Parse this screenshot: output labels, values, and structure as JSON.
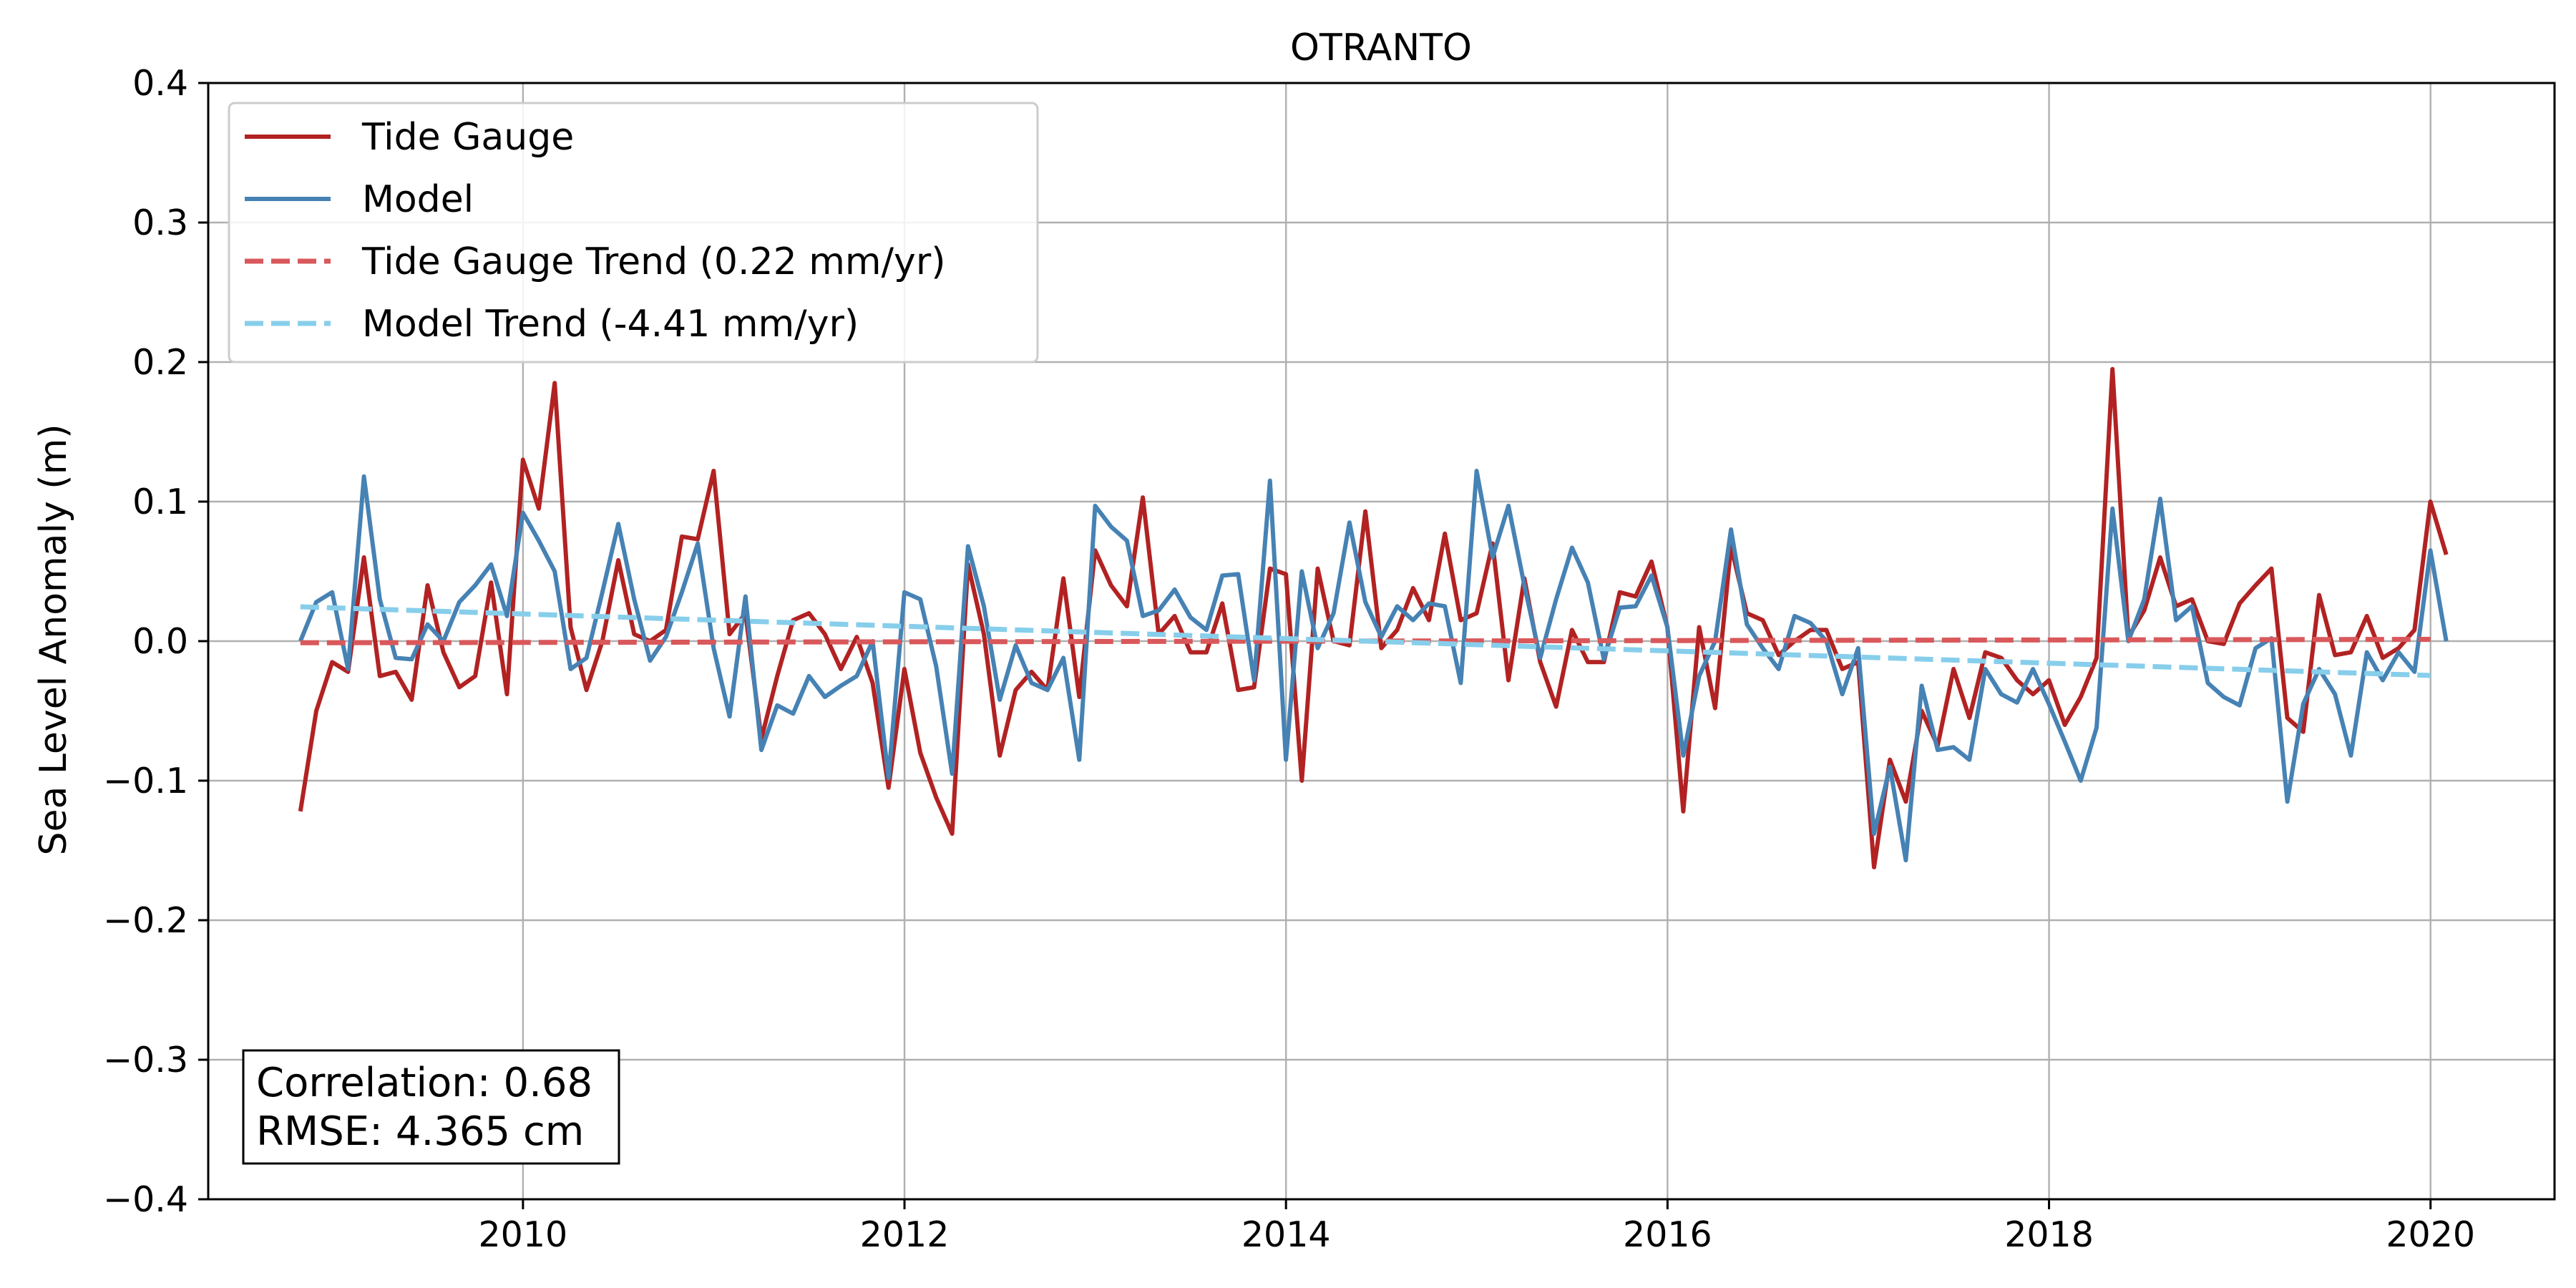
{
  "chart_data": {
    "type": "line",
    "title": "OTRANTO",
    "xlabel": "",
    "ylabel": "Sea Level Anomaly (m)",
    "xlim": [
      2008.35,
      2020.65
    ],
    "ylim": [
      -0.4,
      0.4
    ],
    "grid": true,
    "legend_position": "top-left",
    "x_ticks": [
      2010,
      2012,
      2014,
      2016,
      2018,
      2020
    ],
    "x_tick_labels": [
      "2010",
      "2012",
      "2014",
      "2016",
      "2018",
      "2020"
    ],
    "y_ticks": [
      -0.4,
      -0.3,
      -0.2,
      -0.1,
      0.0,
      0.1,
      0.2,
      0.3,
      0.4
    ],
    "y_tick_labels": [
      "−0.4",
      "−0.3",
      "−0.2",
      "−0.1",
      "0.0",
      "0.1",
      "0.2",
      "0.3",
      "0.4"
    ],
    "x_start": 2008.833,
    "x_step": 0.08333,
    "series": [
      {
        "name": "Tide Gauge",
        "color": "#b22222",
        "style": "solid",
        "values": [
          -0.122,
          -0.05,
          -0.015,
          -0.022,
          0.06,
          -0.025,
          -0.022,
          -0.042,
          0.04,
          -0.008,
          -0.033,
          -0.025,
          0.042,
          -0.038,
          0.13,
          0.095,
          0.185,
          0.01,
          -0.035,
          0.0,
          0.058,
          0.005,
          0.0,
          0.008,
          0.075,
          0.073,
          0.122,
          0.005,
          0.02,
          -0.07,
          -0.025,
          0.015,
          0.02,
          0.005,
          -0.02,
          0.003,
          -0.03,
          -0.105,
          -0.02,
          -0.08,
          -0.112,
          -0.138,
          0.055,
          0.005,
          -0.082,
          -0.035,
          -0.022,
          -0.035,
          0.045,
          -0.04,
          0.065,
          0.04,
          0.025,
          0.103,
          0.005,
          0.018,
          -0.008,
          -0.008,
          0.027,
          -0.035,
          -0.033,
          0.052,
          0.048,
          -0.1,
          0.052,
          0.0,
          -0.003,
          0.093,
          -0.005,
          0.008,
          0.038,
          0.015,
          0.077,
          0.015,
          0.02,
          0.07,
          -0.028,
          0.045,
          -0.015,
          -0.047,
          0.008,
          -0.015,
          -0.015,
          0.035,
          0.032,
          0.057,
          0.01,
          -0.122,
          0.01,
          -0.048,
          0.068,
          0.02,
          0.015,
          -0.01,
          0.0,
          0.008,
          0.008,
          -0.02,
          -0.015,
          -0.162,
          -0.085,
          -0.115,
          -0.05,
          -0.075,
          -0.02,
          -0.055,
          -0.008,
          -0.012,
          -0.028,
          -0.038,
          -0.028,
          -0.06,
          -0.04,
          -0.012,
          0.195,
          0.003,
          0.022,
          0.06,
          0.025,
          0.03,
          0.0,
          -0.002,
          0.027,
          0.04,
          0.052,
          -0.055,
          -0.065,
          0.033,
          -0.01,
          -0.008,
          0.018,
          -0.012,
          -0.005,
          0.008,
          0.1,
          0.062
        ]
      },
      {
        "name": "Model",
        "color": "#4682b4",
        "style": "solid",
        "values": [
          0.0,
          0.028,
          0.035,
          -0.02,
          0.118,
          0.03,
          -0.012,
          -0.013,
          0.012,
          0.0,
          0.028,
          0.04,
          0.055,
          0.018,
          0.092,
          0.072,
          0.05,
          -0.02,
          -0.012,
          0.035,
          0.084,
          0.03,
          -0.014,
          0.003,
          0.035,
          0.07,
          -0.005,
          -0.054,
          0.032,
          -0.078,
          -0.046,
          -0.052,
          -0.025,
          -0.04,
          -0.032,
          -0.025,
          0.0,
          -0.098,
          0.035,
          0.03,
          -0.018,
          -0.095,
          0.068,
          0.025,
          -0.042,
          -0.003,
          -0.03,
          -0.035,
          -0.012,
          -0.085,
          0.097,
          0.082,
          0.072,
          0.018,
          0.022,
          0.037,
          0.017,
          0.008,
          0.047,
          0.048,
          -0.028,
          0.115,
          -0.085,
          0.05,
          -0.005,
          0.02,
          0.085,
          0.028,
          0.003,
          0.025,
          0.015,
          0.027,
          0.025,
          -0.03,
          0.122,
          0.06,
          0.097,
          0.04,
          -0.012,
          0.03,
          0.067,
          0.042,
          -0.013,
          0.024,
          0.025,
          0.047,
          0.01,
          -0.082,
          -0.025,
          0.0,
          0.08,
          0.012,
          -0.005,
          -0.02,
          0.018,
          0.013,
          0.0,
          -0.038,
          -0.005,
          -0.138,
          -0.09,
          -0.157,
          -0.032,
          -0.078,
          -0.076,
          -0.085,
          -0.02,
          -0.038,
          -0.044,
          -0.02,
          -0.045,
          -0.072,
          -0.1,
          -0.062,
          0.095,
          0.0,
          0.03,
          0.102,
          0.015,
          0.025,
          -0.03,
          -0.04,
          -0.046,
          -0.005,
          0.002,
          -0.115,
          -0.045,
          -0.02,
          -0.038,
          -0.082,
          -0.008,
          -0.028,
          -0.008,
          -0.022,
          0.065,
          0.0
        ]
      },
      {
        "name": "Tide Gauge Trend (0.22 mm/yr)",
        "color": "#d9585b",
        "style": "dashed",
        "x": [
          2008.833,
          2020.0
        ],
        "values": [
          -0.0012,
          0.0013
        ]
      },
      {
        "name": "Model Trend (-4.41 mm/yr)",
        "color": "#87ceeb",
        "style": "dashed",
        "x": [
          2008.833,
          2020.0
        ],
        "values": [
          0.0246,
          -0.0246
        ]
      }
    ],
    "annotation": {
      "line1": "Correlation: 0.68",
      "line2": "RMSE: 4.365 cm",
      "position": "bottom-left"
    }
  }
}
